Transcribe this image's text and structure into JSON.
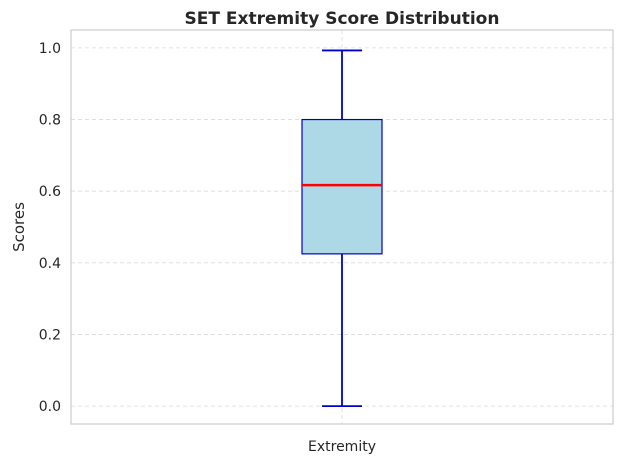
{
  "chart_data": {
    "type": "boxplot",
    "title": "SET Extremity Score Distribution",
    "xlabel": "",
    "ylabel": "Scores",
    "categories": [
      "Extremity"
    ],
    "ylim": [
      -0.05,
      1.05
    ],
    "yticks": [
      "0.0",
      "0.2",
      "0.4",
      "0.6",
      "0.8",
      "1.0"
    ],
    "grid": true,
    "series": [
      {
        "category": "Extremity",
        "min": 0.0,
        "q1": 0.425,
        "median": 0.617,
        "q3": 0.8,
        "max": 0.993
      }
    ],
    "colors": {
      "box_fill": "#add8e6",
      "box_edge": "#0000cd",
      "whisker": "#0000cd",
      "median": "#ff0000",
      "frame": "#cccccc"
    }
  }
}
